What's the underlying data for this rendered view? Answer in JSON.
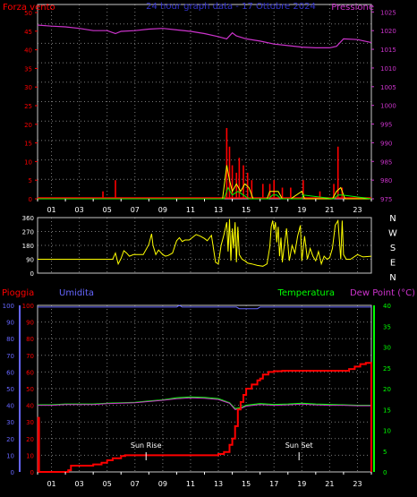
{
  "colors": {
    "background": "#000000",
    "panel_border": "#c8c8c8",
    "grid": "#7a7a7a",
    "wind_speed": "#ff0000",
    "wind_gust": "#ffff00",
    "wind_avg": "#00ff00",
    "pressure": "#cc33cc",
    "direction": "#ffff00",
    "rain": "#ff0000",
    "humidity": "#6666ff",
    "temperature": "#00ff00",
    "dew_point": "#cc33cc",
    "hours": "#ffffff",
    "mid_ticks": "#ffffff",
    "cardinals": "#ffffff",
    "sun_labels": "#ffffff"
  },
  "chart_data": [
    {
      "type": "line",
      "title": "24 hour graph data - 17 Ottobre 2024",
      "y_left_label": "Forza vento",
      "y_right_label": "Pressione",
      "y_left_ticks": [
        "0",
        "5",
        "10",
        "15",
        "20",
        "25",
        "30",
        "35",
        "40",
        "45",
        "50"
      ],
      "y_right_ticks": [
        "975",
        "980",
        "985",
        "990",
        "995",
        "1000",
        "1005",
        "1010",
        "1015",
        "1020",
        "1025"
      ],
      "ylim_left": [
        0,
        50
      ],
      "ylim_right": [
        975,
        1027
      ],
      "x_ticks": [
        "01",
        "03",
        "05",
        "07",
        "09",
        "11",
        "13",
        "15",
        "17",
        "19",
        "21",
        "23"
      ],
      "xlim": [
        0,
        24
      ],
      "grid": true,
      "series": [
        {
          "key": "pressure",
          "axis": "right",
          "x": [
            0,
            1,
            2,
            3,
            4,
            5,
            5.6,
            6,
            7,
            8,
            9,
            10,
            11,
            12,
            13,
            13.6,
            14,
            14.3,
            15,
            16,
            17,
            18,
            19,
            20,
            21,
            21.5,
            22,
            23,
            24
          ],
          "y": [
            1021.5,
            1021.2,
            1021.0,
            1020.6,
            1020.0,
            1020.0,
            1019.2,
            1019.8,
            1020.0,
            1020.4,
            1020.6,
            1020.2,
            1019.8,
            1019.2,
            1018.4,
            1017.8,
            1019.4,
            1018.6,
            1017.8,
            1017.2,
            1016.4,
            1016.0,
            1015.6,
            1015.4,
            1015.4,
            1015.8,
            1017.8,
            1017.6,
            1016.8
          ]
        },
        {
          "key": "wind_speed",
          "axis": "left",
          "kind": "bars",
          "x": [
            4.7,
            5.6,
            13.6,
            13.8,
            14.0,
            14.3,
            14.5,
            14.8,
            15.1,
            15.4,
            16.2,
            16.7,
            17.0,
            17.6,
            18.2,
            19.1,
            20.3,
            21.3,
            21.6,
            21.9
          ],
          "y": [
            2,
            5,
            19,
            14,
            9,
            7,
            11,
            9,
            7,
            5,
            4,
            4,
            5,
            3,
            3,
            5,
            2,
            4,
            14,
            3
          ]
        },
        {
          "key": "wind_gust",
          "axis": "left",
          "x": [
            0,
            13.3,
            13.6,
            13.8,
            14.0,
            14.3,
            14.6,
            14.9,
            15.2,
            15.5,
            16.5,
            16.7,
            17.0,
            17.3,
            17.6,
            18.2,
            19.0,
            19.2,
            21.2,
            21.5,
            21.8,
            22.1,
            24
          ],
          "y": [
            0,
            0,
            9,
            5,
            2,
            4,
            2,
            4,
            3,
            0,
            0,
            2,
            2,
            2,
            0,
            0,
            2,
            0,
            0,
            2,
            3,
            0,
            0
          ]
        },
        {
          "key": "wind_avg",
          "axis": "left",
          "x": [
            0,
            13.4,
            13.7,
            14.0,
            14.4,
            14.8,
            15.2,
            16.6,
            16.9,
            17.2,
            17.5,
            19.0,
            19.1,
            21.3,
            21.6,
            21.9,
            24
          ],
          "y": [
            0,
            0,
            3,
            1,
            2,
            1,
            0,
            0,
            1,
            1,
            0,
            0,
            1,
            0,
            1,
            1,
            0
          ]
        }
      ]
    },
    {
      "type": "line",
      "y_ticks": [
        "360",
        "270",
        "180",
        "90",
        "0"
      ],
      "right_labels": [
        "N",
        "W",
        "S",
        "E",
        "N"
      ],
      "ylim": [
        0,
        360
      ],
      "xlim": [
        0,
        24
      ],
      "grid": true,
      "series": [
        {
          "key": "direction",
          "x": [
            0,
            5.4,
            5.6,
            5.8,
            6.0,
            6.2,
            6.4,
            6.6,
            6.9,
            7.6,
            8.0,
            8.2,
            8.3,
            8.5,
            8.7,
            9.0,
            9.2,
            9.4,
            9.7,
            10.0,
            10.2,
            10.4,
            10.6,
            10.9,
            11.4,
            11.7,
            12.0,
            12.2,
            12.5,
            12.8,
            13.0,
            13.2,
            13.4,
            13.6,
            13.7,
            13.8,
            13.9,
            14.0,
            14.1,
            14.2,
            14.3,
            14.4,
            14.5,
            14.7,
            14.9,
            15.1,
            15.4,
            15.8,
            16.2,
            16.5,
            16.7,
            16.8,
            16.9,
            17.0,
            17.1,
            17.2,
            17.3,
            17.4,
            17.5,
            17.6,
            17.7,
            17.9,
            18.1,
            18.3,
            18.5,
            18.7,
            18.9,
            19.0,
            19.2,
            19.4,
            19.6,
            19.8,
            20.0,
            20.2,
            20.4,
            20.6,
            20.8,
            21.0,
            21.2,
            21.4,
            21.6,
            21.8,
            21.9,
            22.0,
            22.2,
            22.5,
            23.0,
            23.4,
            24
          ],
          "y": [
            90,
            90,
            130,
            60,
            95,
            145,
            130,
            110,
            120,
            120,
            185,
            255,
            180,
            120,
            150,
            120,
            110,
            115,
            130,
            210,
            230,
            205,
            215,
            215,
            250,
            240,
            225,
            210,
            245,
            70,
            60,
            180,
            250,
            330,
            140,
            350,
            80,
            290,
            160,
            330,
            70,
            300,
            120,
            90,
            80,
            65,
            60,
            50,
            45,
            60,
            170,
            300,
            340,
            280,
            330,
            200,
            300,
            110,
            230,
            70,
            150,
            290,
            80,
            180,
            130,
            240,
            310,
            80,
            240,
            90,
            160,
            110,
            80,
            140,
            60,
            110,
            90,
            100,
            160,
            310,
            340,
            90,
            340,
            120,
            90,
            90,
            120,
            105,
            110
          ]
        }
      ]
    },
    {
      "type": "line",
      "y_left_label": "Pioggia",
      "y_left2_label": "Umidita",
      "y_right_label": "Temperatura",
      "y_right2_label": "Dew Point (°C)",
      "y_left_ticks": [
        "0",
        "10",
        "20",
        "30",
        "40",
        "50",
        "60",
        "70",
        "80",
        "90",
        "100"
      ],
      "y_right_ticks": [
        "0",
        "5",
        "10",
        "15",
        "20",
        "25",
        "30",
        "35",
        "40"
      ],
      "ylim_left": [
        0,
        100
      ],
      "ylim_right": [
        0,
        40
      ],
      "x_ticks": [
        "01",
        "03",
        "05",
        "07",
        "09",
        "11",
        "13",
        "15",
        "17",
        "19",
        "21",
        "23"
      ],
      "xlim": [
        0,
        24
      ],
      "grid": true,
      "annotations": [
        {
          "text": "Sun Rise",
          "x": 7.8
        },
        {
          "text": "Sun Set",
          "x": 18.8
        }
      ],
      "series": [
        {
          "key": "humidity",
          "axis": "left",
          "x": [
            0,
            10.0,
            10.2,
            10.4,
            11,
            12,
            13,
            14.3,
            14.5,
            15.8,
            16,
            24
          ],
          "y": [
            99,
            99,
            100,
            99,
            99,
            99,
            99,
            99,
            98,
            98,
            99,
            99
          ]
        },
        {
          "key": "temperature",
          "axis": "right",
          "x": [
            0,
            1,
            2,
            3,
            4,
            5,
            6,
            7,
            8,
            9,
            10,
            11,
            12,
            13,
            13.8,
            14.2,
            14.6,
            15,
            16,
            17,
            18,
            19,
            20,
            21,
            22,
            23,
            24
          ],
          "y": [
            16.1,
            16.1,
            16.3,
            16.3,
            16.3,
            16.5,
            16.6,
            16.7,
            17.0,
            17.3,
            17.8,
            18.0,
            17.9,
            17.6,
            16.6,
            15.2,
            15.4,
            16.0,
            16.4,
            16.2,
            16.3,
            16.5,
            16.3,
            16.2,
            16.1,
            16.0,
            16.0
          ]
        },
        {
          "key": "dew_point",
          "axis": "right",
          "x": [
            0,
            1,
            2,
            3,
            4,
            5,
            6,
            7,
            8,
            9,
            10,
            11,
            12,
            13,
            13.8,
            14.2,
            14.6,
            15,
            16,
            17,
            18,
            19,
            20,
            21,
            22,
            23,
            24
          ],
          "y": [
            16.0,
            16.0,
            16.2,
            16.2,
            16.2,
            16.4,
            16.5,
            16.6,
            16.9,
            17.2,
            17.6,
            17.8,
            17.7,
            17.4,
            16.5,
            15.0,
            15.2,
            15.8,
            16.2,
            16.0,
            16.1,
            16.3,
            16.1,
            16.0,
            16.0,
            15.9,
            15.9
          ]
        },
        {
          "key": "rain",
          "axis": "right",
          "x": [
            0,
            0.05,
            0.1,
            0.4,
            1.5,
            2.2,
            2.4,
            3.6,
            4.0,
            4.6,
            5.0,
            5.4,
            6.0,
            6.3,
            6.6,
            7,
            8,
            9,
            10,
            11,
            12,
            13,
            13.4,
            13.8,
            14.0,
            14.2,
            14.4,
            14.6,
            14.8,
            15.0,
            15.4,
            15.8,
            16.0,
            16.2,
            16.6,
            17.0,
            17.6,
            18,
            19,
            20,
            21,
            22,
            22.4,
            22.8,
            23.2,
            23.6,
            23.9,
            24
          ],
          "y": [
            0,
            13,
            0,
            0,
            0,
            0.4,
            1.5,
            1.5,
            1.8,
            2.2,
            2.8,
            3.3,
            3.8,
            4.0,
            4.0,
            4.0,
            4.0,
            4.0,
            4.0,
            4.0,
            4.0,
            4.3,
            4.8,
            6.5,
            8.0,
            11.0,
            15.0,
            16.8,
            18.5,
            20.0,
            21.0,
            22.0,
            22.4,
            23.4,
            24.0,
            24.2,
            24.3,
            24.3,
            24.3,
            24.3,
            24.3,
            24.3,
            24.7,
            25.3,
            25.9,
            26.2,
            26.2,
            0
          ]
        }
      ]
    }
  ]
}
